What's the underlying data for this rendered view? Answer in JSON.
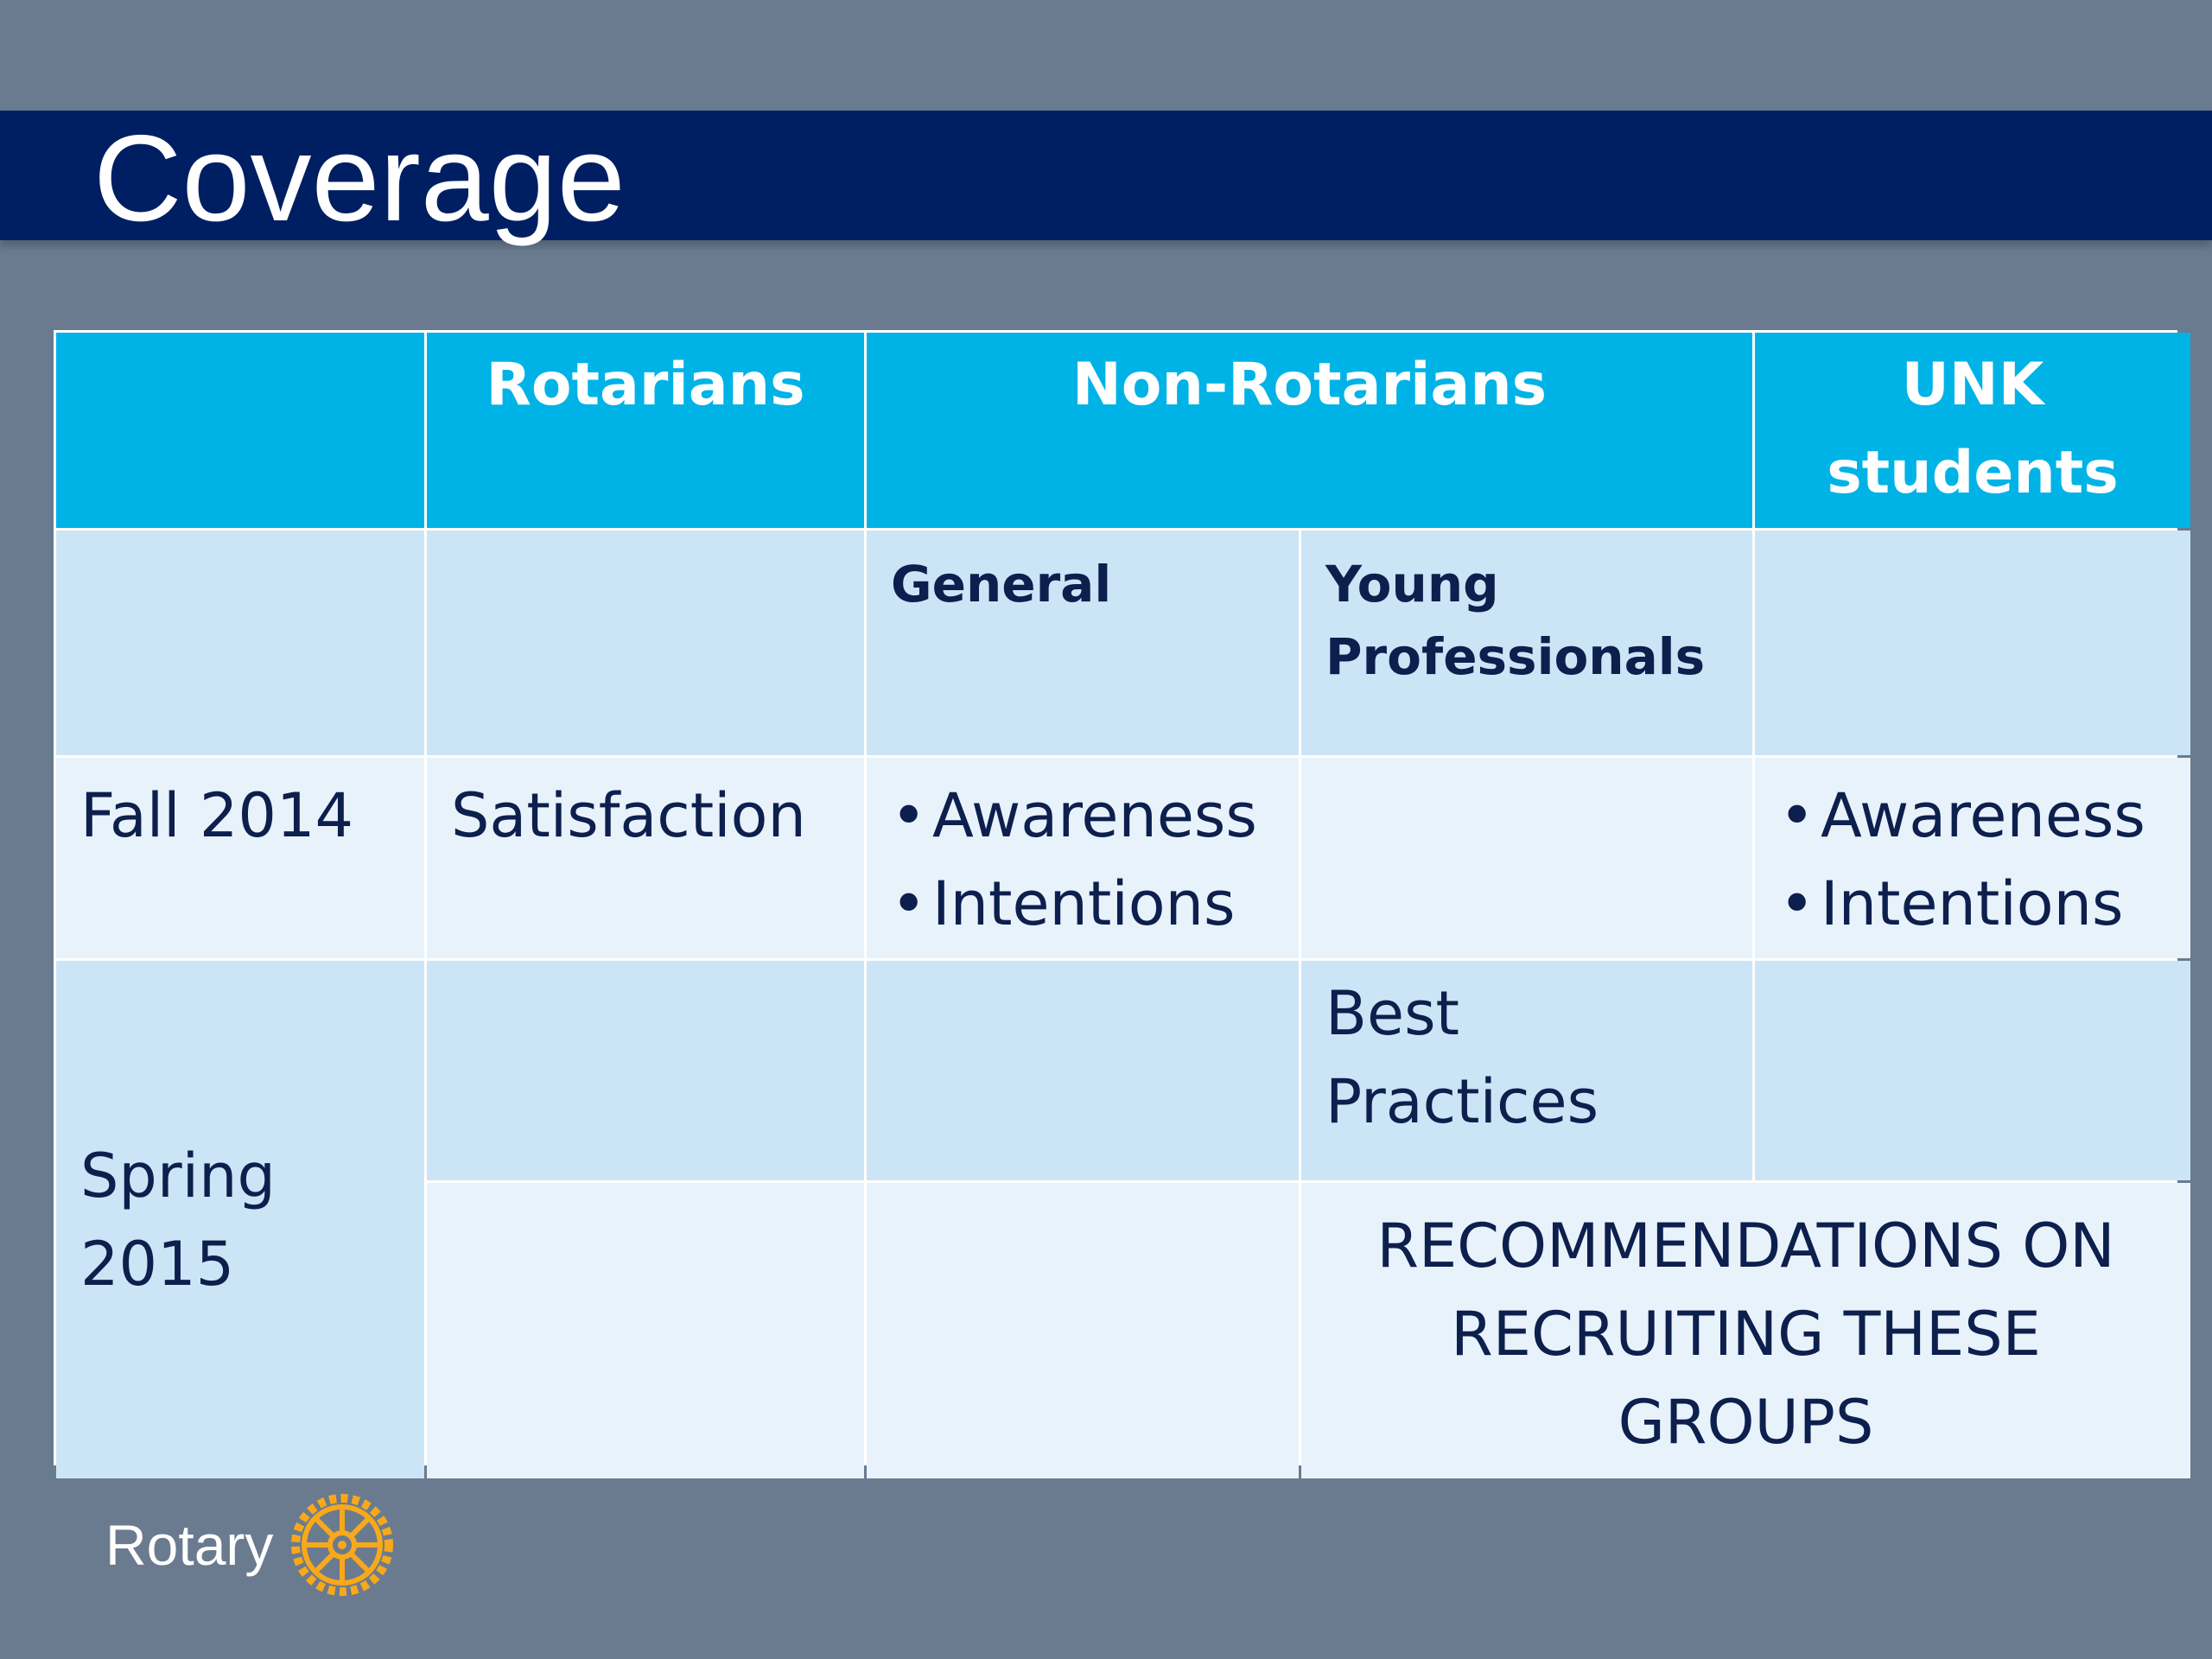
{
  "slide": {
    "title": "Coverage"
  },
  "table": {
    "headers": {
      "blank": "",
      "rotarians": "Rotarians",
      "non_rotarians": "Non-Rotarians",
      "unk_line1": "UNK",
      "unk_line2": "students"
    },
    "subheaders": {
      "general": "General",
      "young_line1": "Young",
      "young_line2": "Professionals"
    },
    "fall": {
      "label": "Fall 2014",
      "rotarians": "Satisfaction",
      "general_items": [
        "Awareness",
        "Intentions"
      ],
      "unk_items": [
        "Awareness",
        "Intentions"
      ]
    },
    "spring": {
      "label_line1": "Spring",
      "label_line2": "2015",
      "young_line1": "Best",
      "young_line2": "Practices",
      "recommendation_line1": "RECOMMENDATIONS ON",
      "recommendation_line2": "RECRUITING THESE",
      "recommendation_line3": "GROUPS"
    }
  },
  "footer": {
    "logo_text": "Rotary",
    "logo_icon": "rotary-wheel-icon"
  },
  "colors": {
    "background": "#6a7b90",
    "title_bar": "#001f63",
    "header_fill": "#00b3e6",
    "light_fill": "#cce5f6",
    "lighter_fill": "#e8f2fb",
    "text_dark": "#0c1f4d",
    "logo_gold": "#f7a81b"
  }
}
